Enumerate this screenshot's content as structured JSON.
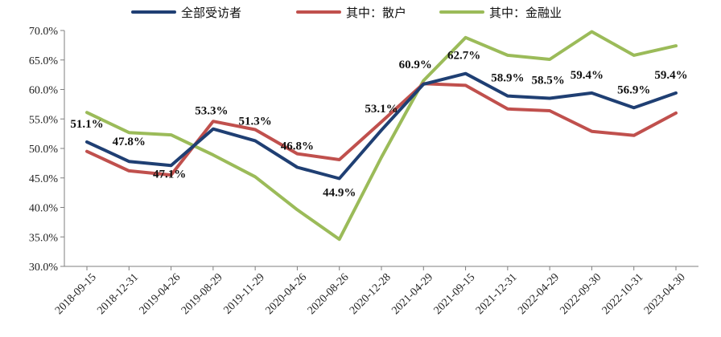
{
  "chart_data": {
    "type": "line",
    "title": "",
    "xlabel": "",
    "ylabel": "",
    "ylim": [
      30,
      70
    ],
    "y_ticks": [
      "30.0%",
      "35.0%",
      "40.0%",
      "45.0%",
      "50.0%",
      "55.0%",
      "60.0%",
      "65.0%",
      "70.0%"
    ],
    "categories": [
      "2018-09-15",
      "2018-12-31",
      "2019-04-26",
      "2019-08-29",
      "2019-11-29",
      "2020-04-26",
      "2020-08-26",
      "2020-12-28",
      "2021-04-29",
      "2021-09-15",
      "2021-12-31",
      "2022-04-29",
      "2022-09-30",
      "2022-10-31",
      "2023-04-30"
    ],
    "legend_position": "top",
    "grid": false,
    "series": [
      {
        "name": "全部受访者",
        "color": "#1f3f73",
        "values": [
          51.1,
          47.8,
          47.1,
          53.3,
          51.3,
          46.8,
          44.9,
          53.1,
          60.9,
          62.7,
          58.9,
          58.5,
          59.4,
          56.9,
          59.4
        ],
        "labels": [
          "51.1%",
          "47.8%",
          "47.1%",
          "53.3%",
          "51.3%",
          "46.8%",
          "44.9%",
          "53.1%",
          "60.9%",
          "62.7%",
          "58.9%",
          "58.5%",
          "59.4%",
          "56.9%",
          "59.4%"
        ]
      },
      {
        "name": "其中：散户",
        "color": "#c0504d",
        "values": [
          49.5,
          46.2,
          45.5,
          54.6,
          53.2,
          49.1,
          48.1,
          54.5,
          61.0,
          60.7,
          56.7,
          56.4,
          52.9,
          52.2,
          56.0
        ]
      },
      {
        "name": "其中：金融业",
        "color": "#9bbb59",
        "values": [
          56.1,
          52.7,
          52.3,
          48.9,
          45.2,
          39.6,
          34.6,
          48.5,
          61.5,
          68.8,
          65.8,
          65.1,
          69.8,
          65.8,
          67.4
        ]
      }
    ]
  }
}
